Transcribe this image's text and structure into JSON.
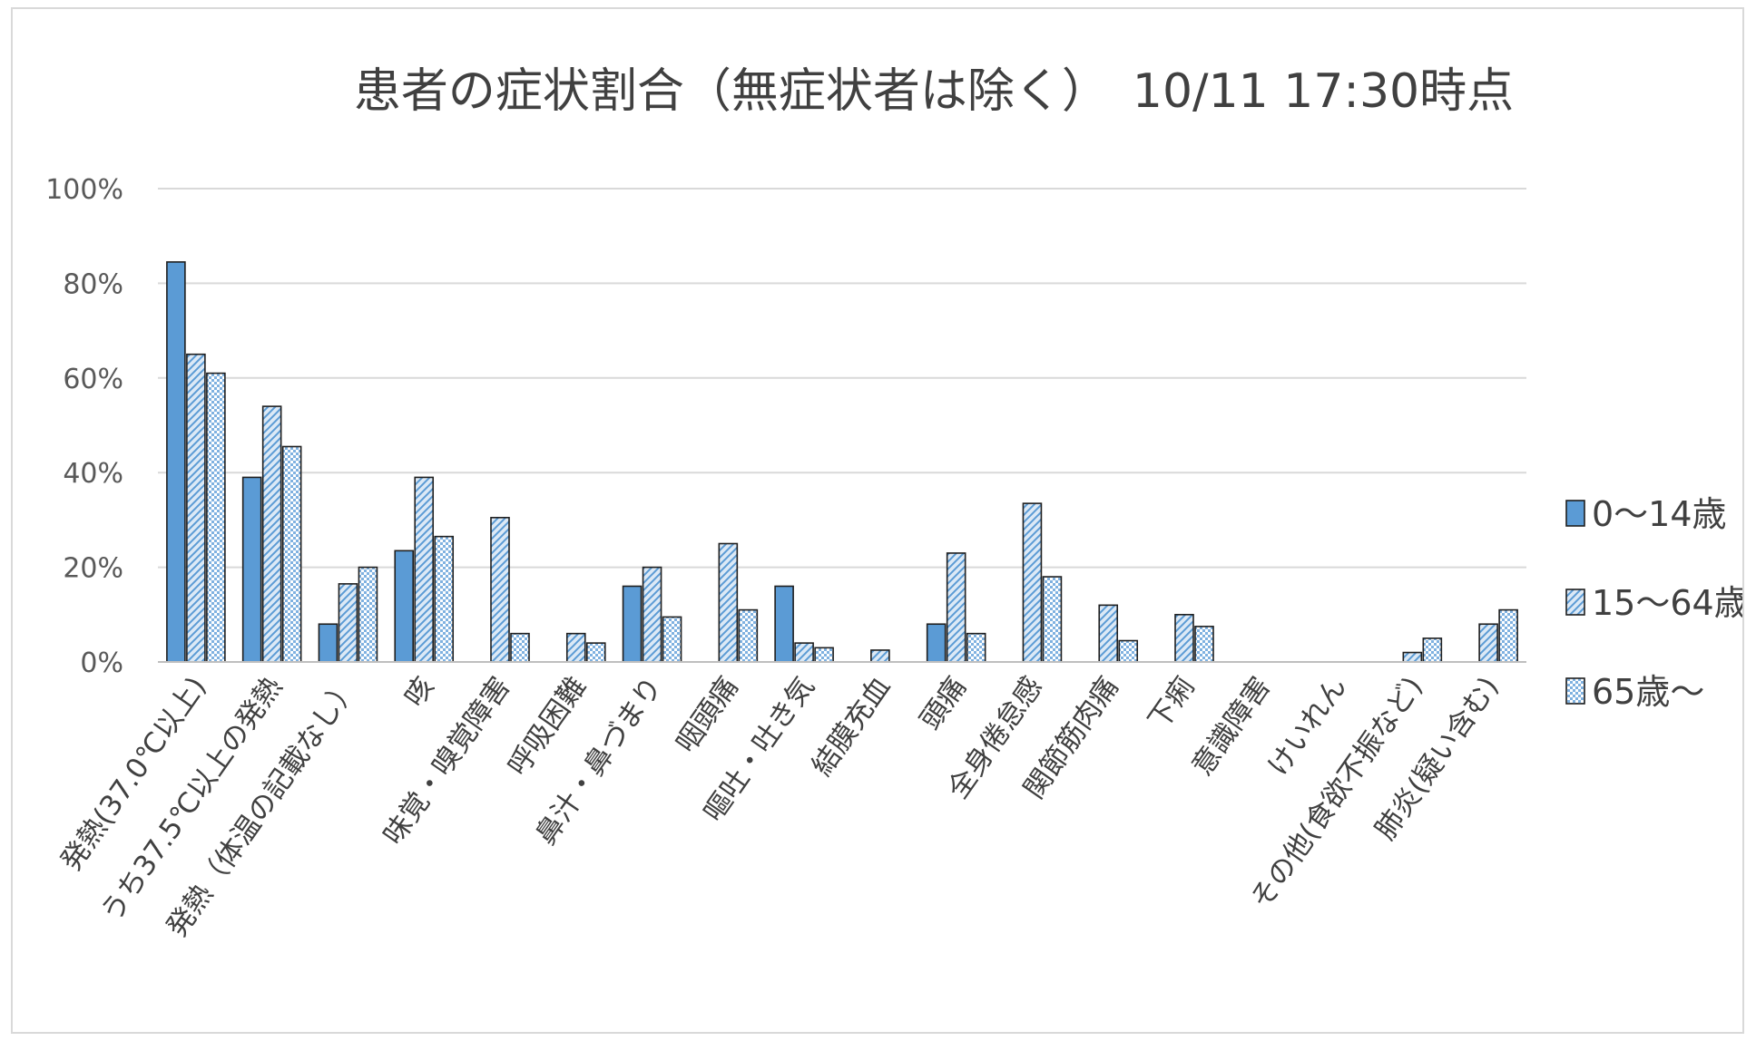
{
  "chart_data": {
    "type": "bar",
    "title": "患者の症状割合（無症状者は除く）　10/11 17:30時点",
    "xlabel": "",
    "ylabel": "",
    "ylim": [
      0,
      100
    ],
    "y_ticks": [
      "0%",
      "20%",
      "40%",
      "60%",
      "80%",
      "100%"
    ],
    "y_tick_values": [
      0,
      20,
      40,
      60,
      80,
      100
    ],
    "grid": true,
    "legend_position": "right",
    "categories": [
      "発熱(37.0℃以上)",
      "うち37.5℃以上の発熱",
      "発熱（体温の記載なし）",
      "咳",
      "味覚・嗅覚障害",
      "呼吸困難",
      "鼻汁・鼻づまり",
      "咽頭痛",
      "嘔吐・吐き気",
      "結膜充血",
      "頭痛",
      "全身倦怠感",
      "関節筋肉痛",
      "下痢",
      "意識障害",
      "けいれん",
      "その他(食欲不振など)",
      "肺炎(疑い含む)"
    ],
    "series": [
      {
        "name": "0～14歳",
        "color": "#5b9bd5",
        "pattern": "solid",
        "values": [
          84.5,
          39,
          8,
          23.5,
          0,
          0,
          16,
          0,
          16,
          0,
          8,
          0,
          0,
          0,
          0,
          0,
          0,
          0
        ]
      },
      {
        "name": "15～64歳",
        "color": "#5b9bd5",
        "pattern": "diagonal",
        "values": [
          65,
          54,
          16.5,
          39,
          30.5,
          6,
          20,
          25,
          4,
          2.5,
          23,
          33.5,
          12,
          10,
          0,
          0,
          2,
          8
        ]
      },
      {
        "name": "65歳～",
        "color": "#5b9bd5",
        "pattern": "dots",
        "values": [
          61,
          45.5,
          20,
          26.5,
          6,
          4,
          9.5,
          11,
          3,
          0,
          6,
          18,
          4.5,
          7.5,
          0,
          0,
          5,
          11
        ]
      }
    ]
  }
}
